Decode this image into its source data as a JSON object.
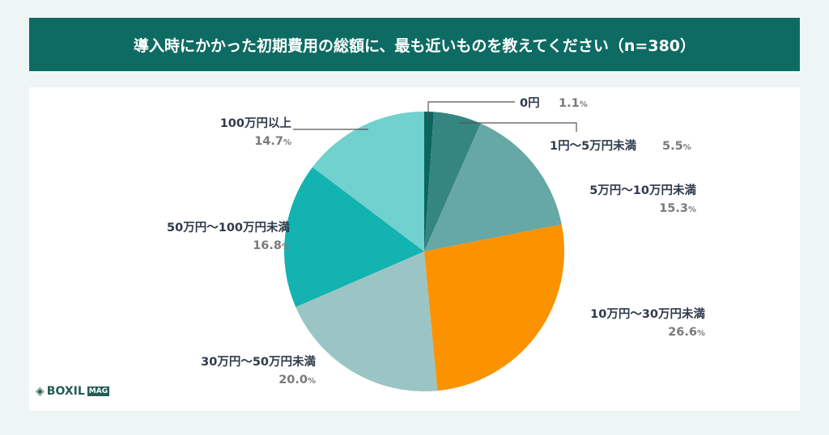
{
  "title": "導入時にかかった初期費用の総額に、最も近いものを教えてください（n=380）",
  "chart_data": {
    "type": "pie",
    "title": "導入時にかかった初期費用の総額に、最も近いものを教えてください（n=380）",
    "unit": "%",
    "slices": [
      {
        "label": "0円",
        "value": 1.1,
        "display": "1.1",
        "color": "#0b6560"
      },
      {
        "label": "1円〜5万円未満",
        "value": 5.5,
        "display": "5.5",
        "color": "#358581"
      },
      {
        "label": "5万円〜10万円未満",
        "value": 15.3,
        "display": "15.3",
        "color": "#65a8a5"
      },
      {
        "label": "10万円〜30万円未満",
        "value": 26.6,
        "display": "26.6",
        "color": "#fb9200"
      },
      {
        "label": "30万円〜50万円未満",
        "value": 20.0,
        "display": "20.0",
        "color": "#9bc5c4"
      },
      {
        "label": "50万円〜100万円未満",
        "value": 16.8,
        "display": "16.8",
        "color": "#12b3b1"
      },
      {
        "label": "100万円以上",
        "value": 14.7,
        "display": "14.7",
        "color": "#71d1cf"
      }
    ]
  },
  "logo": {
    "text": "BOXIL",
    "badge": "MAG"
  }
}
